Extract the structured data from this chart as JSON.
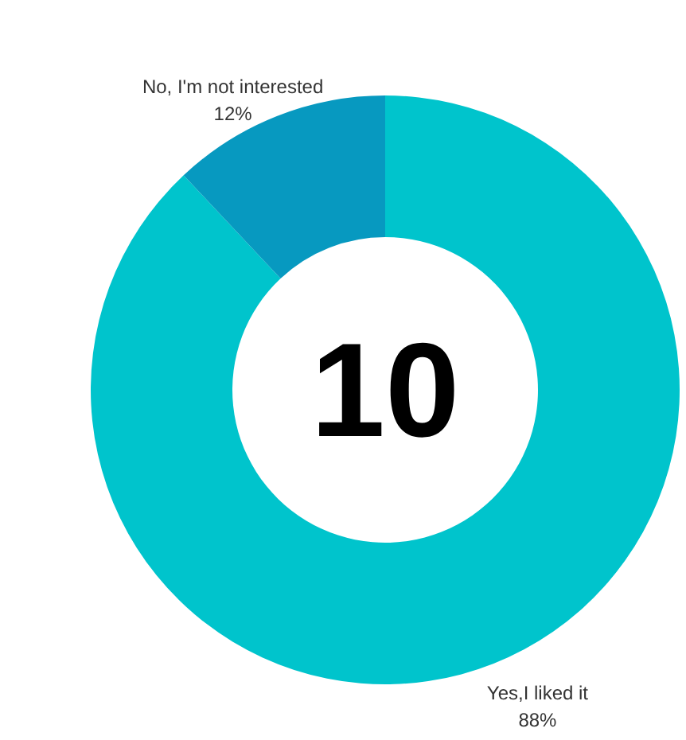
{
  "chart_data": {
    "type": "donut",
    "categories": [
      "Yes,I liked it",
      "No, I'm not interested"
    ],
    "values": [
      88,
      12
    ],
    "colors": [
      "#00c4cc",
      "#0799c0"
    ],
    "value_labels": [
      "88%",
      "12%"
    ],
    "annotations": [
      "10"
    ]
  }
}
